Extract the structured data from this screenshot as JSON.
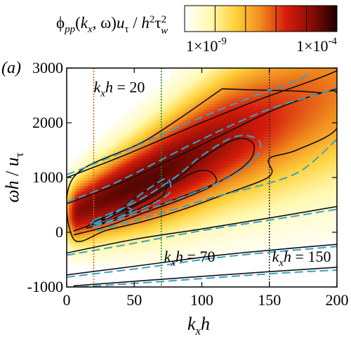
{
  "chart_data": {
    "type": "heatmap",
    "panel_label": "(a)",
    "colorbar": {
      "title_parts": {
        "phi": "ϕ",
        "phi_sub": "pp",
        "open": "(",
        "kx_k": "k",
        "kx_sub": "x",
        "rest": ", ω)",
        "u": "u",
        "u_sub": "τ",
        "slash": " / ",
        "h": "h",
        "h_sup": "2",
        "tau": "τ",
        "tau_sub": "w",
        "tau_sup": "2"
      },
      "min_label": "1×10",
      "min_exp": "-9",
      "max_label": "1×10",
      "max_exp": "-4",
      "colors": [
        "#ffffff",
        "#fff9b0",
        "#ffd23c",
        "#f08a1e",
        "#d61c0c",
        "#8a0c05",
        "#1a0000"
      ]
    },
    "xlabel": {
      "k": "k",
      "sub": "x",
      "h": "h"
    },
    "ylabel": {
      "omega": "ωh",
      "slash": " / ",
      "u": "u",
      "sub": "τ"
    },
    "xlim": [
      0,
      200
    ],
    "ylim": [
      -1000,
      3000
    ],
    "xticks": [
      0,
      50,
      100,
      150,
      200
    ],
    "yticks": [
      -1000,
      0,
      1000,
      2000,
      3000
    ],
    "vertical_lines": [
      {
        "x": 20,
        "color": "#d2691e",
        "label_k": "k",
        "label_sub": "x",
        "label_h": "h",
        "label_val": " = 20",
        "label_x": 20,
        "label_y": 2560
      },
      {
        "x": 70,
        "color": "#1a8c1a",
        "label_k": "k",
        "label_sub": "x",
        "label_h": "h",
        "label_val": " = 70",
        "label_x": 72,
        "label_y": -540
      },
      {
        "x": 150,
        "color": "#333333",
        "label_k": "k",
        "label_sub": "x",
        "label_h": "h",
        "label_val": " = 150",
        "label_x": 152,
        "label_y": -540
      }
    ],
    "series": [
      {
        "style": "solid",
        "color": "#111111",
        "contours": [
          [
            [
              0,
              1000
            ],
            [
              40,
              1380
            ],
            [
              90,
              1900
            ],
            [
              140,
              2400
            ],
            [
              185,
              2800
            ],
            [
              200,
              2950
            ]
          ],
          [
            [
              0,
              520
            ],
            [
              40,
              900
            ],
            [
              100,
              1600
            ],
            [
              150,
              2200
            ],
            [
              180,
              2480
            ],
            [
              200,
              2620
            ]
          ],
          [
            [
              0,
              -380
            ],
            [
              50,
              -130
            ],
            [
              100,
              60
            ],
            [
              150,
              260
            ],
            [
              200,
              470
            ]
          ],
          [
            [
              0,
              -780
            ],
            [
              60,
              -590
            ],
            [
              120,
              -400
            ],
            [
              200,
              -220
            ]
          ],
          [
            [
              5,
              -980
            ],
            [
              70,
              -860
            ],
            [
              150,
              -720
            ],
            [
              200,
              -640
            ]
          ],
          [
            [
              5,
              20
            ],
            [
              30,
              250
            ],
            [
              60,
              600
            ],
            [
              90,
              1050
            ],
            [
              105,
              1120
            ],
            [
              110,
              900
            ],
            [
              90,
              650
            ],
            [
              60,
              380
            ],
            [
              30,
              110
            ],
            [
              5,
              -50
            ]
          ]
        ],
        "closed": [
          [
            [
              115,
              2620
            ],
            [
              140,
              2600
            ],
            [
              170,
              2580
            ],
            [
              188,
              2550
            ],
            [
              200,
              2540
            ],
            [
              200,
              1900
            ],
            [
              170,
              1500
            ],
            [
              150,
              1350
            ],
            [
              152,
              1100
            ],
            [
              145,
              950
            ],
            [
              120,
              720
            ],
            [
              90,
              450
            ],
            [
              60,
              220
            ],
            [
              30,
              40
            ],
            [
              5,
              -120
            ],
            [
              5,
              1000
            ],
            [
              60,
              1700
            ],
            [
              115,
              2620
            ]
          ],
          [
            [
              20,
              200
            ],
            [
              50,
              500
            ],
            [
              80,
              950
            ],
            [
              100,
              1350
            ],
            [
              125,
              1700
            ],
            [
              138,
              1620
            ],
            [
              135,
              1300
            ],
            [
              115,
              950
            ],
            [
              85,
              650
            ],
            [
              55,
              380
            ],
            [
              30,
              180
            ],
            [
              15,
              80
            ],
            [
              20,
              200
            ]
          ],
          [
            [
              18,
              150
            ],
            [
              35,
              350
            ],
            [
              55,
              700
            ],
            [
              72,
              950
            ],
            [
              72,
              700
            ],
            [
              58,
              480
            ],
            [
              40,
              300
            ],
            [
              25,
              160
            ],
            [
              18,
              150
            ]
          ],
          [
            [
              18,
              140
            ],
            [
              28,
              250
            ],
            [
              40,
              420
            ],
            [
              45,
              380
            ],
            [
              35,
              250
            ],
            [
              25,
              150
            ],
            [
              18,
              140
            ]
          ]
        ]
      },
      {
        "style": "dashed",
        "color": "#3aa0c8",
        "contours": [
          [
            [
              0,
              1050
            ],
            [
              40,
              1450
            ],
            [
              90,
              2000
            ],
            [
              140,
              2500
            ],
            [
              170,
              2770
            ],
            [
              180,
              2900
            ]
          ],
          [
            [
              0,
              550
            ],
            [
              40,
              950
            ],
            [
              100,
              1700
            ],
            [
              150,
              2250
            ],
            [
              190,
              2550
            ],
            [
              200,
              2650
            ]
          ],
          [
            [
              0,
              -420
            ],
            [
              50,
              -200
            ],
            [
              100,
              30
            ],
            [
              150,
              220
            ],
            [
              200,
              420
            ]
          ],
          [
            [
              0,
              -820
            ],
            [
              60,
              -640
            ],
            [
              120,
              -440
            ],
            [
              200,
              -260
            ]
          ],
          [
            [
              10,
              -1000
            ],
            [
              70,
              -900
            ],
            [
              150,
              -760
            ],
            [
              200,
              -690
            ]
          ],
          [
            [
              200,
              1700
            ],
            [
              175,
              1150
            ],
            [
              150,
              900
            ],
            [
              110,
              650
            ],
            [
              80,
              420
            ],
            [
              50,
              210
            ],
            [
              20,
              10
            ]
          ]
        ],
        "closed": [
          [
            [
              20,
              220
            ],
            [
              50,
              540
            ],
            [
              80,
              1000
            ],
            [
              100,
              1400
            ],
            [
              125,
              1750
            ],
            [
              142,
              1680
            ],
            [
              140,
              1360
            ],
            [
              120,
              1000
            ],
            [
              90,
              680
            ],
            [
              60,
              420
            ],
            [
              35,
              210
            ],
            [
              18,
              100
            ],
            [
              20,
              220
            ]
          ],
          [
            [
              20,
              160
            ],
            [
              38,
              380
            ],
            [
              58,
              750
            ],
            [
              74,
              980
            ],
            [
              76,
              720
            ],
            [
              62,
              500
            ],
            [
              44,
              320
            ],
            [
              28,
              180
            ],
            [
              20,
              160
            ]
          ],
          [
            [
              20,
              150
            ],
            [
              30,
              270
            ],
            [
              42,
              440
            ],
            [
              48,
              400
            ],
            [
              38,
              270
            ],
            [
              27,
              160
            ],
            [
              20,
              150
            ]
          ]
        ]
      }
    ],
    "field": {
      "ridge": [
        [
          0,
          300
        ],
        [
          60,
          950
        ],
        [
          120,
          1750
        ],
        [
          200,
          2600
        ]
      ],
      "peak": {
        "x": 55,
        "y": 700
      },
      "note": "spectral magnitude concentrated along ridge, decaying away"
    }
  }
}
